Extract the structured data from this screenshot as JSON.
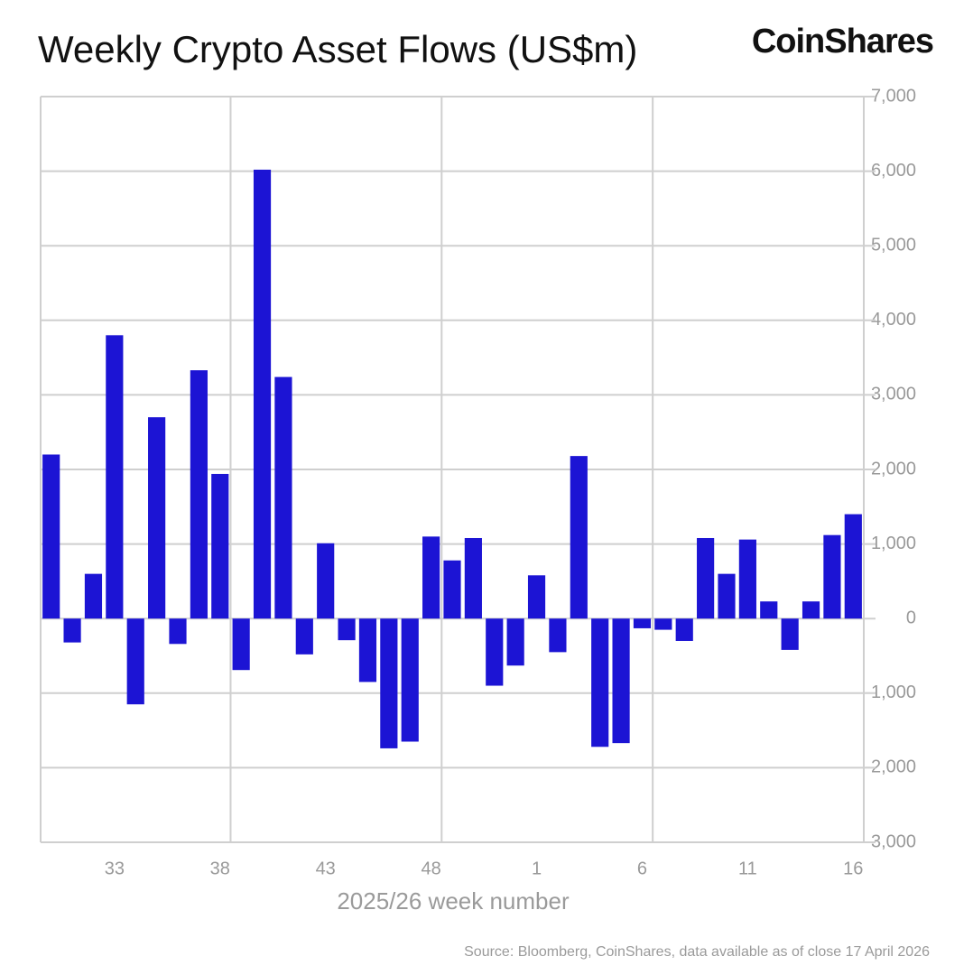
{
  "chart_data": {
    "type": "bar",
    "title": "Weekly Crypto Asset Flows (US$m)",
    "brand": "CoinShares",
    "x_label": "2025/26 week number",
    "source": "Source: Bloomberg, CoinShares, data available as of close 17 April 2026",
    "categories": [
      null,
      null,
      null,
      "33",
      null,
      null,
      null,
      null,
      "38",
      null,
      null,
      null,
      null,
      "43",
      null,
      null,
      null,
      null,
      "48",
      null,
      null,
      null,
      null,
      "1",
      null,
      null,
      null,
      null,
      "6",
      null,
      null,
      null,
      null,
      "11",
      null,
      null,
      null,
      null,
      "16"
    ],
    "values": [
      2200,
      -320,
      600,
      3800,
      -1150,
      2700,
      -340,
      3330,
      1940,
      -690,
      6020,
      3240,
      -480,
      1010,
      -290,
      -850,
      -1740,
      -1650,
      1100,
      780,
      1080,
      -900,
      -630,
      580,
      -450,
      2180,
      -1720,
      -1670,
      -130,
      -150,
      -300,
      1080,
      600,
      1060,
      230,
      -420,
      230,
      1120,
      1400
    ],
    "color": "#1c14d4",
    "ylim": [
      -3000,
      7000
    ],
    "yticks": [
      {
        "value": -3000,
        "label": "-3,000"
      },
      {
        "value": -2000,
        "label": "-2,000"
      },
      {
        "value": -1000,
        "label": "-1,000"
      },
      0,
      {
        "value": 1000,
        "label": "1,000"
      },
      {
        "value": 2000,
        "label": "2,000"
      },
      {
        "value": 3000,
        "label": "3,000"
      },
      {
        "value": 4000,
        "label": "4,000"
      },
      {
        "value": 5000,
        "label": "5,000"
      },
      {
        "value": 6000,
        "label": "6,000"
      },
      {
        "value": 7000,
        "label": "7,000"
      }
    ],
    "grid": true
  }
}
